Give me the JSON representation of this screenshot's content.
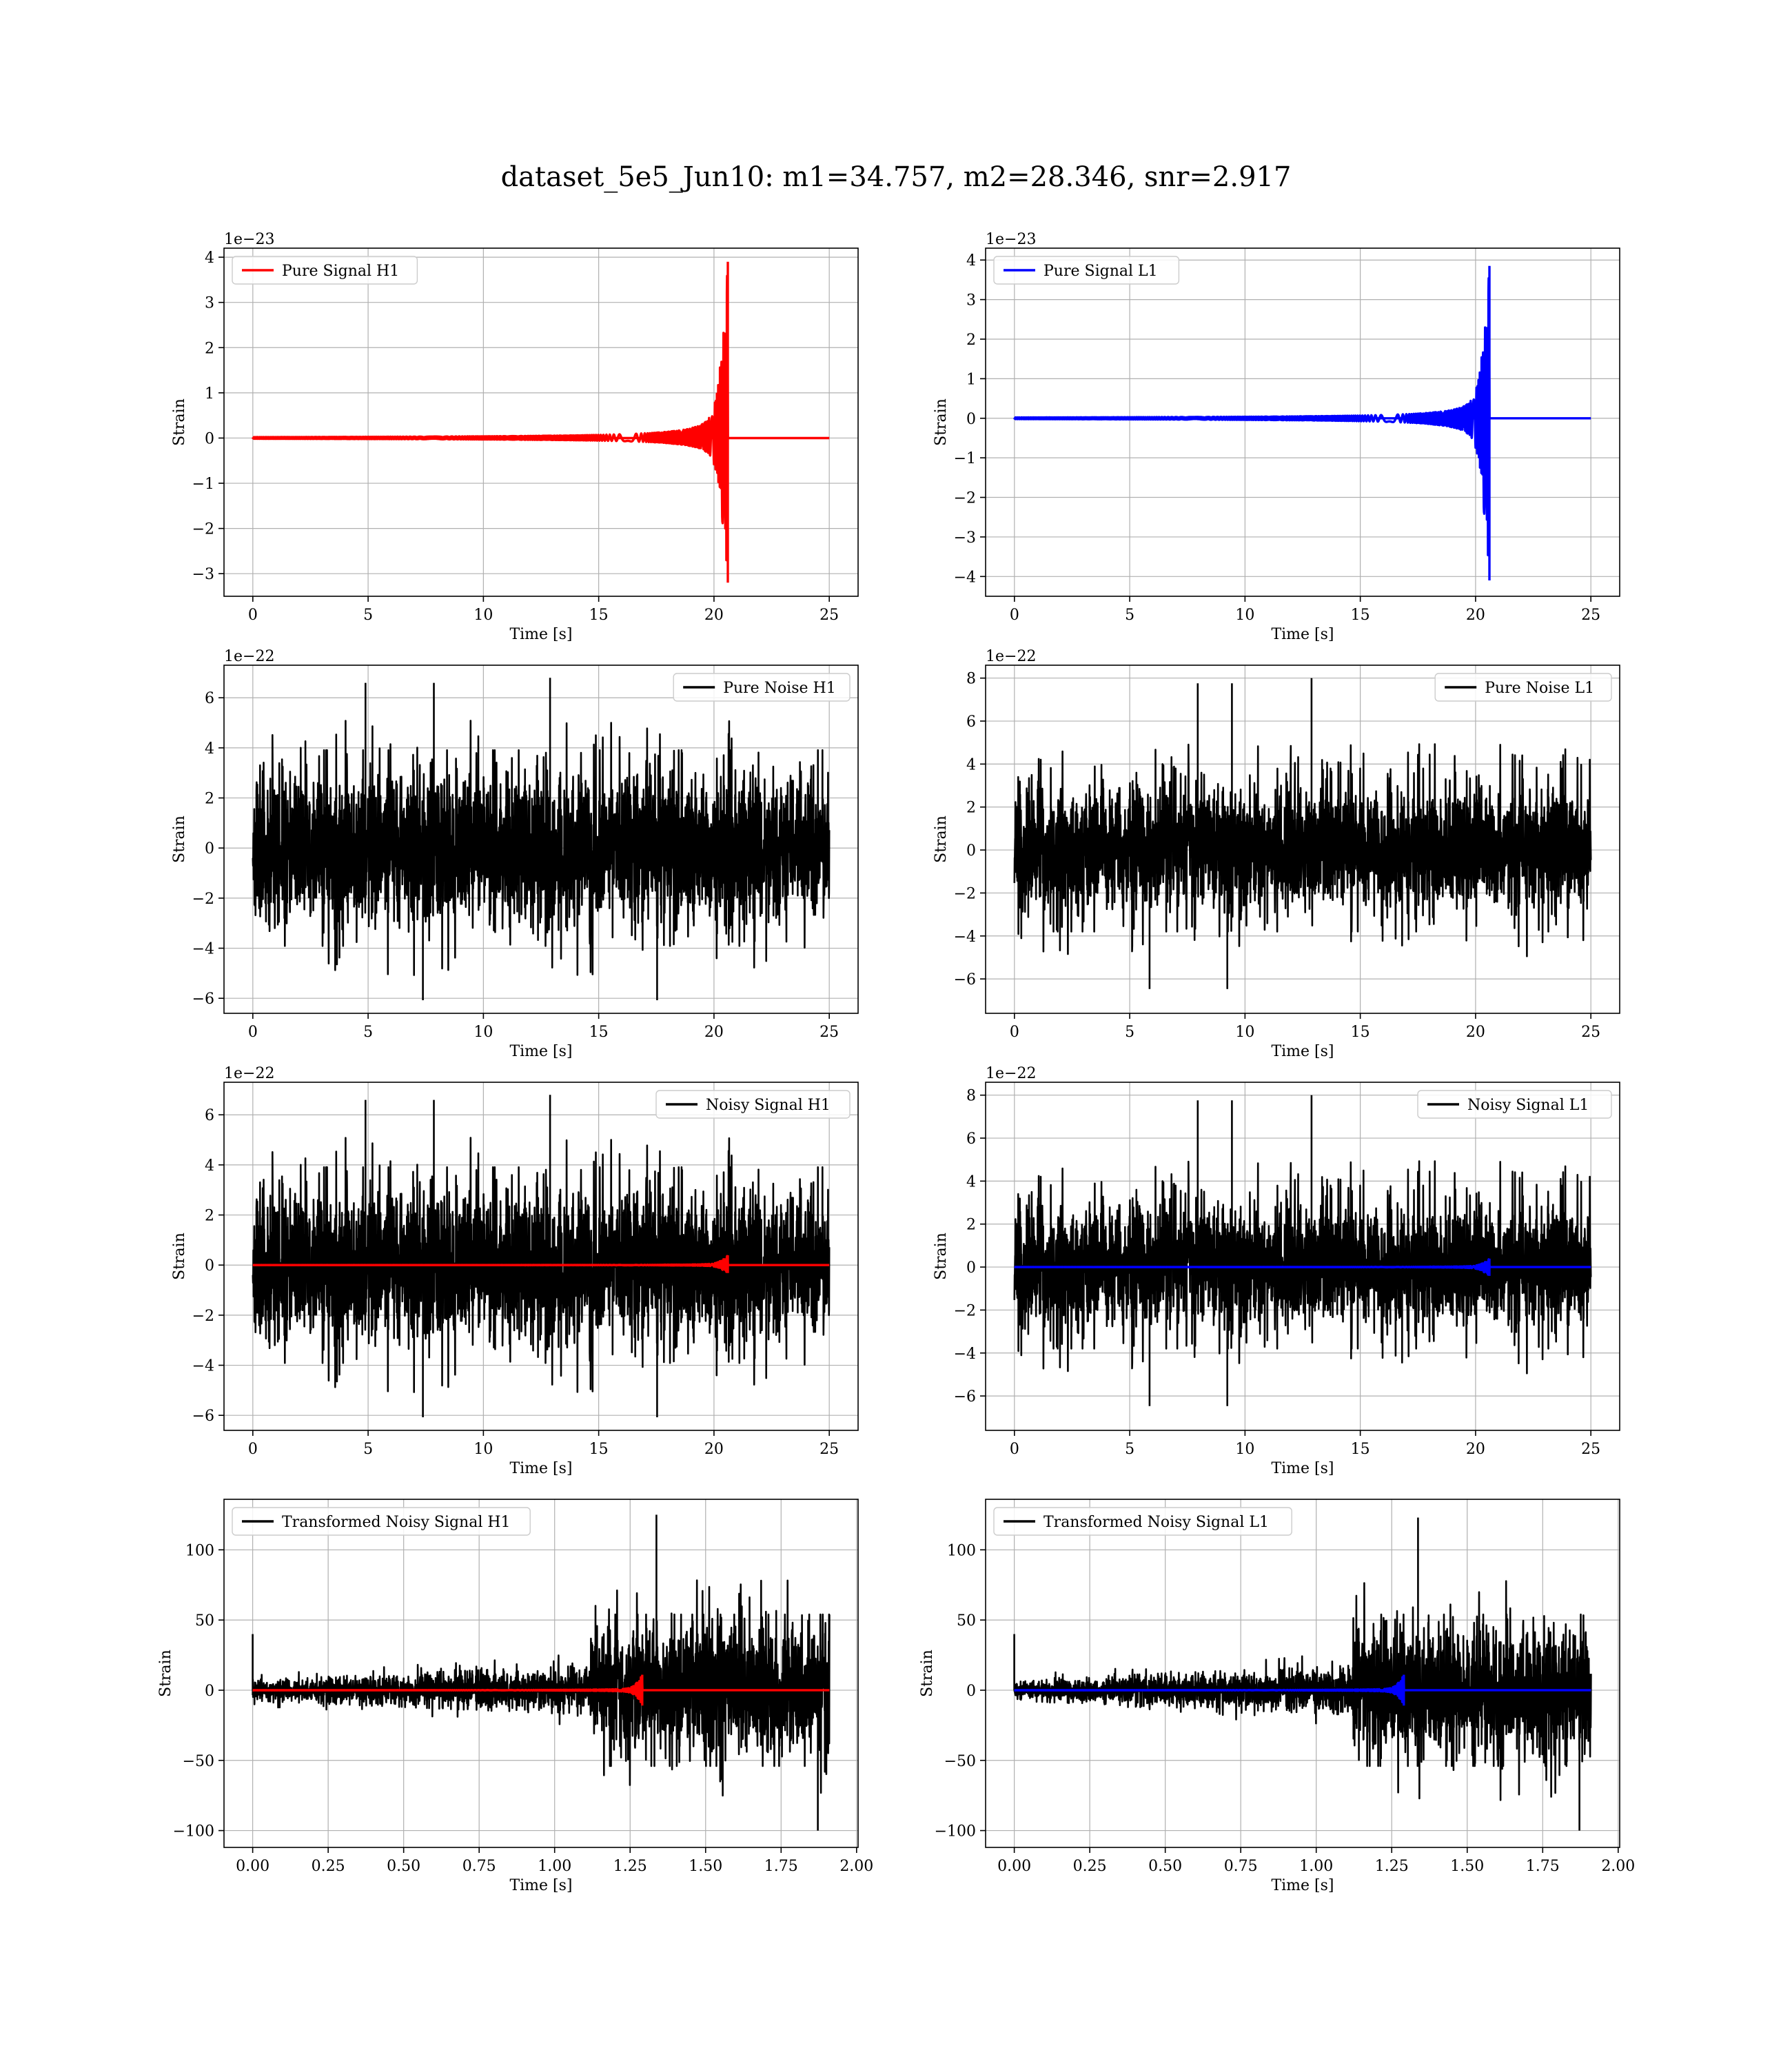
{
  "title": "dataset_5e5_Jun10: m1=34.757, m2=28.346, snr=2.917",
  "colors": {
    "h1_signal": "#ff0000",
    "l1_signal": "#0000ff",
    "noise": "#000000",
    "grid": "#b0b0b0"
  },
  "chart_data": [
    {
      "id": "pure-signal-h1",
      "type": "line",
      "row": 0,
      "col": 0,
      "xlabel": "Time [s]",
      "ylabel": "Strain",
      "offset_text": "1e−23",
      "xlim": [
        -1.25,
        26.25
      ],
      "ylim": [
        -3.5,
        4.2
      ],
      "xticks": [
        0,
        5,
        10,
        15,
        20,
        25
      ],
      "xtick_labels": [
        "0",
        "5",
        "10",
        "15",
        "20",
        "25"
      ],
      "yticks": [
        -3,
        -2,
        -1,
        0,
        1,
        2,
        3,
        4
      ],
      "ytick_labels": [
        "−3",
        "−2",
        "−1",
        "0",
        "1",
        "2",
        "3",
        "4"
      ],
      "legend": {
        "placement": "upper-left",
        "entries": [
          {
            "label": "Pure Signal H1",
            "color": "#ff0000"
          }
        ]
      },
      "series": [
        {
          "name": "Pure Signal H1",
          "color": "#ff0000",
          "kind": "chirp",
          "x_start": 0,
          "x_end": 25,
          "merger": 20.6,
          "peak_pos": 3.9,
          "peak_neg": -3.2
        }
      ]
    },
    {
      "id": "pure-signal-l1",
      "type": "line",
      "row": 0,
      "col": 1,
      "xlabel": "Time [s]",
      "ylabel": "Strain",
      "offset_text": "1e−23",
      "xlim": [
        -1.25,
        26.25
      ],
      "ylim": [
        -4.5,
        4.3
      ],
      "xticks": [
        0,
        5,
        10,
        15,
        20,
        25
      ],
      "xtick_labels": [
        "0",
        "5",
        "10",
        "15",
        "20",
        "25"
      ],
      "yticks": [
        -4,
        -3,
        -2,
        -1,
        0,
        1,
        2,
        3,
        4
      ],
      "ytick_labels": [
        "−4",
        "−3",
        "−2",
        "−1",
        "0",
        "1",
        "2",
        "3",
        "4"
      ],
      "legend": {
        "placement": "upper-left",
        "entries": [
          {
            "label": "Pure Signal L1",
            "color": "#0000ff"
          }
        ]
      },
      "series": [
        {
          "name": "Pure Signal L1",
          "color": "#0000ff",
          "kind": "chirp",
          "x_start": 0,
          "x_end": 25,
          "merger": 20.6,
          "peak_pos": 3.85,
          "peak_neg": -4.1
        }
      ]
    },
    {
      "id": "pure-noise-h1",
      "type": "line",
      "row": 1,
      "col": 0,
      "xlabel": "Time [s]",
      "ylabel": "Strain",
      "offset_text": "1e−22",
      "xlim": [
        -1.25,
        26.25
      ],
      "ylim": [
        -6.6,
        7.3
      ],
      "xticks": [
        0,
        5,
        10,
        15,
        20,
        25
      ],
      "xtick_labels": [
        "0",
        "5",
        "10",
        "15",
        "20",
        "25"
      ],
      "yticks": [
        -6,
        -4,
        -2,
        0,
        2,
        4,
        6
      ],
      "ytick_labels": [
        "−6",
        "−4",
        "−2",
        "0",
        "2",
        "4",
        "6"
      ],
      "legend": {
        "placement": "upper-right",
        "entries": [
          {
            "label": "Pure Noise H1",
            "color": "#000000"
          }
        ]
      },
      "series": [
        {
          "name": "Pure Noise H1",
          "color": "#000000",
          "kind": "noise",
          "x_start": 0,
          "x_end": 25,
          "band": 3.4,
          "spike_max": 6.8,
          "spike_min": -6.2,
          "seed": 11
        }
      ]
    },
    {
      "id": "pure-noise-l1",
      "type": "line",
      "row": 1,
      "col": 1,
      "xlabel": "Time [s]",
      "ylabel": "Strain",
      "offset_text": "1e−22",
      "xlim": [
        -1.25,
        26.25
      ],
      "ylim": [
        -7.6,
        8.6
      ],
      "xticks": [
        0,
        5,
        10,
        15,
        20,
        25
      ],
      "xtick_labels": [
        "0",
        "5",
        "10",
        "15",
        "20",
        "25"
      ],
      "yticks": [
        -6,
        -4,
        -2,
        0,
        2,
        4,
        6,
        8
      ],
      "ytick_labels": [
        "−6",
        "−4",
        "−2",
        "0",
        "2",
        "4",
        "6",
        "8"
      ],
      "legend": {
        "placement": "upper-right",
        "entries": [
          {
            "label": "Pure Noise L1",
            "color": "#000000"
          }
        ]
      },
      "series": [
        {
          "name": "Pure Noise L1",
          "color": "#000000",
          "kind": "noise",
          "x_start": 0,
          "x_end": 25,
          "band": 3.3,
          "spike_max": 8.0,
          "spike_min": -6.6,
          "seed": 23
        }
      ]
    },
    {
      "id": "noisy-signal-h1",
      "type": "line",
      "row": 2,
      "col": 0,
      "xlabel": "Time [s]",
      "ylabel": "Strain",
      "offset_text": "1e−22",
      "xlim": [
        -1.25,
        26.25
      ],
      "ylim": [
        -6.6,
        7.3
      ],
      "xticks": [
        0,
        5,
        10,
        15,
        20,
        25
      ],
      "xtick_labels": [
        "0",
        "5",
        "10",
        "15",
        "20",
        "25"
      ],
      "yticks": [
        -6,
        -4,
        -2,
        0,
        2,
        4,
        6
      ],
      "ytick_labels": [
        "−6",
        "−4",
        "−2",
        "0",
        "2",
        "4",
        "6"
      ],
      "legend": {
        "placement": "upper-right",
        "entries": [
          {
            "label": "Noisy Signal H1",
            "color": "#000000"
          }
        ]
      },
      "series": [
        {
          "name": "Noisy Signal H1",
          "color": "#000000",
          "kind": "noise",
          "x_start": 0,
          "x_end": 25,
          "band": 3.4,
          "spike_max": 6.8,
          "spike_min": -6.2,
          "seed": 11
        },
        {
          "name": "",
          "color": "#ff0000",
          "kind": "chirp",
          "x_start": 0,
          "x_end": 25,
          "merger": 20.6,
          "peak_pos": 0.39,
          "peak_neg": -0.32
        }
      ]
    },
    {
      "id": "noisy-signal-l1",
      "type": "line",
      "row": 2,
      "col": 1,
      "xlabel": "Time [s]",
      "ylabel": "Strain",
      "offset_text": "1e−22",
      "xlim": [
        -1.25,
        26.25
      ],
      "ylim": [
        -7.6,
        8.6
      ],
      "xticks": [
        0,
        5,
        10,
        15,
        20,
        25
      ],
      "xtick_labels": [
        "0",
        "5",
        "10",
        "15",
        "20",
        "25"
      ],
      "yticks": [
        -6,
        -4,
        -2,
        0,
        2,
        4,
        6,
        8
      ],
      "ytick_labels": [
        "−6",
        "−4",
        "−2",
        "0",
        "2",
        "4",
        "6",
        "8"
      ],
      "legend": {
        "placement": "upper-right",
        "entries": [
          {
            "label": "Noisy Signal L1",
            "color": "#000000"
          }
        ]
      },
      "series": [
        {
          "name": "Noisy Signal L1",
          "color": "#000000",
          "kind": "noise",
          "x_start": 0,
          "x_end": 25,
          "band": 3.3,
          "spike_max": 8.0,
          "spike_min": -6.6,
          "seed": 23
        },
        {
          "name": "",
          "color": "#0000ff",
          "kind": "chirp",
          "x_start": 0,
          "x_end": 25,
          "merger": 20.6,
          "peak_pos": 0.39,
          "peak_neg": -0.41
        }
      ]
    },
    {
      "id": "transformed-noisy-signal-h1",
      "type": "line",
      "row": 3,
      "col": 0,
      "xlabel": "Time [s]",
      "ylabel": "Strain",
      "offset_text": "",
      "xlim": [
        -0.095,
        2.005
      ],
      "ylim": [
        -112,
        136
      ],
      "xticks": [
        0,
        0.25,
        0.5,
        0.75,
        1.0,
        1.25,
        1.5,
        1.75,
        2.0
      ],
      "xtick_labels": [
        "0.00",
        "0.25",
        "0.50",
        "0.75",
        "1.00",
        "1.25",
        "1.50",
        "1.75",
        "2.00"
      ],
      "yticks": [
        -100,
        -50,
        0,
        50,
        100
      ],
      "ytick_labels": [
        "−100",
        "−50",
        "0",
        "50",
        "100"
      ],
      "legend": {
        "placement": "upper-left",
        "entries": [
          {
            "label": "Transformed Noisy Signal H1",
            "color": "#000000"
          }
        ]
      },
      "series": [
        {
          "name": "Transformed Noisy Signal H1",
          "color": "#000000",
          "kind": "whitened",
          "x_start": 0,
          "x_end": 1.91,
          "step_at": 1.12,
          "low_band": 7,
          "high_band": 45,
          "spike_max": 125,
          "spike_min": -100,
          "seed": 37
        },
        {
          "name": "",
          "color": "#ff0000",
          "kind": "chirp",
          "x_start": 0,
          "x_end": 1.91,
          "merger": 1.29,
          "peak_pos": 11,
          "peak_neg": -11
        }
      ]
    },
    {
      "id": "transformed-noisy-signal-l1",
      "type": "line",
      "row": 3,
      "col": 1,
      "xlabel": "Time [s]",
      "ylabel": "Strain",
      "offset_text": "",
      "xlim": [
        -0.095,
        2.005
      ],
      "ylim": [
        -112,
        136
      ],
      "xticks": [
        0,
        0.25,
        0.5,
        0.75,
        1.0,
        1.25,
        1.5,
        1.75,
        2.0
      ],
      "xtick_labels": [
        "0.00",
        "0.25",
        "0.50",
        "0.75",
        "1.00",
        "1.25",
        "1.50",
        "1.75",
        "2.00"
      ],
      "yticks": [
        -100,
        -50,
        0,
        50,
        100
      ],
      "ytick_labels": [
        "−100",
        "−50",
        "0",
        "50",
        "100"
      ],
      "legend": {
        "placement": "upper-left",
        "entries": [
          {
            "label": "Transformed Noisy Signal L1",
            "color": "#000000"
          }
        ]
      },
      "series": [
        {
          "name": "Transformed Noisy Signal L1",
          "color": "#000000",
          "kind": "whitened",
          "x_start": 0,
          "x_end": 1.91,
          "step_at": 1.12,
          "low_band": 7,
          "high_band": 45,
          "spike_max": 123,
          "spike_min": -100,
          "seed": 53
        },
        {
          "name": "",
          "color": "#0000ff",
          "kind": "chirp",
          "x_start": 0,
          "x_end": 1.91,
          "merger": 1.29,
          "peak_pos": 11,
          "peak_neg": -11
        }
      ]
    }
  ]
}
